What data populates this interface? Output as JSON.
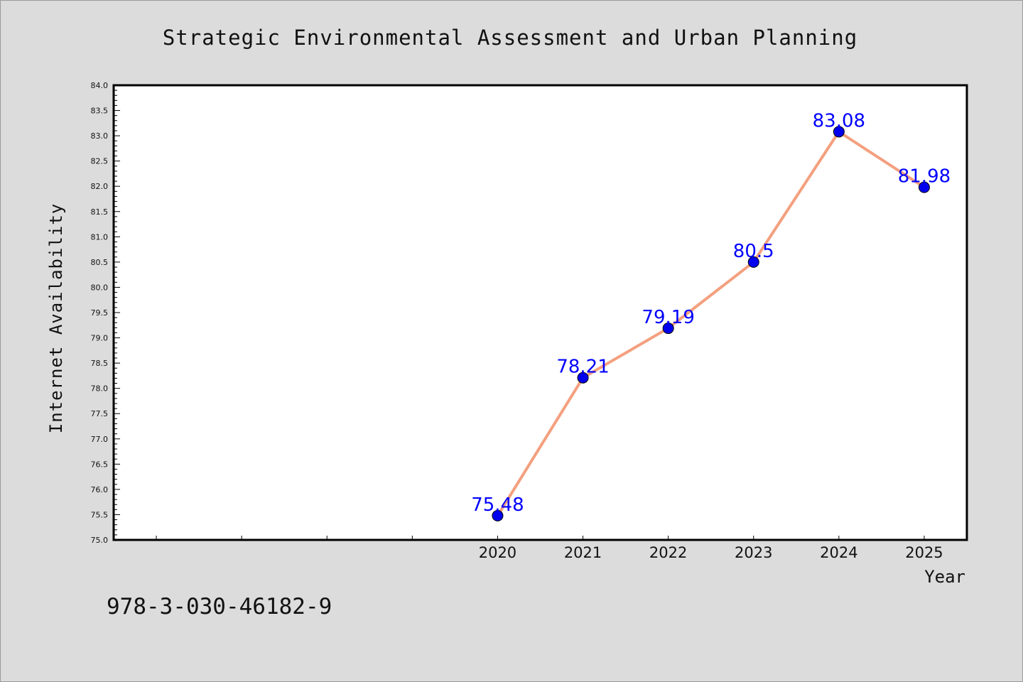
{
  "chart_data": {
    "type": "line",
    "title": "Strategic Environmental Assessment and Urban Planning",
    "xlabel": "Year",
    "ylabel": "Internet Availability",
    "x": [
      "2020",
      "2021",
      "2022",
      "2023",
      "2024",
      "2025"
    ],
    "series": [
      {
        "values": [
          75.48,
          78.21,
          79.19,
          80.5,
          83.08,
          81.98
        ],
        "labels": [
          "75.48",
          "78.21",
          "79.19",
          "80.5",
          "83.08",
          "81.98"
        ]
      }
    ],
    "ylim": [
      75.0,
      84.0
    ],
    "y_major_step": 0.5,
    "y_tick_labels": [
      "75.0",
      "75.5",
      "76.0",
      "76.5",
      "77.0",
      "77.5",
      "78.0",
      "78.5",
      "79.0",
      "79.5",
      "80.0",
      "80.5",
      "81.0",
      "81.5",
      "82.0",
      "82.5",
      "83.0",
      "83.5",
      "84.0"
    ],
    "x_index_range": [
      -4.5,
      5.5
    ],
    "grid": false,
    "legend": "none",
    "colors": {
      "line": "#f4a07f",
      "marker": "#0000ee",
      "data_label": "#0000ff",
      "background": "#dcdcdc",
      "plot_area": "#ffffff"
    }
  },
  "footer_text": "978-3-030-46182-9"
}
